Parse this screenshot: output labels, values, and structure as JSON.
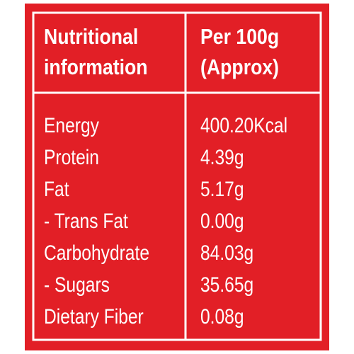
{
  "table": {
    "header": [
      [
        "Nutritional",
        "information"
      ],
      [
        "Per 100g",
        "(Approx)"
      ]
    ],
    "rows": [
      [
        "Energy",
        "400.20Kcal"
      ],
      [
        "Protein",
        "4.39g"
      ],
      [
        "Fat",
        "5.17g"
      ],
      [
        "- Trans Fat",
        "0.00g"
      ],
      [
        "Carbohydrate",
        "84.03g"
      ],
      [
        "- Sugars",
        "35.65g"
      ],
      [
        "Dietary Fiber",
        "0.08g"
      ]
    ]
  }
}
